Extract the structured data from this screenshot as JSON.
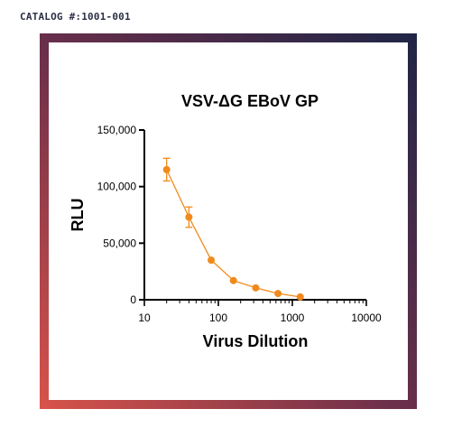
{
  "header": {
    "catalog": "CATALOG #:1001-001"
  },
  "colors": {
    "series": "#f08a1c",
    "frame_start": "#d9534a",
    "frame_end": "#1f2546"
  },
  "chart_data": {
    "type": "scatter",
    "title": "VSV-ΔG EBoV GP",
    "xlabel": "Virus Dilution",
    "ylabel": "RLU",
    "xscale": "log",
    "xlim": [
      10,
      10000
    ],
    "ylim": [
      0,
      150000
    ],
    "xticks": [
      10,
      100,
      1000,
      10000
    ],
    "xtick_labels": [
      "10",
      "100",
      "1000",
      "10000"
    ],
    "yticks": [
      0,
      50000,
      100000,
      150000
    ],
    "ytick_labels": [
      "0",
      "50,000",
      "100,000",
      "150,000"
    ],
    "grid": false,
    "series": [
      {
        "points": [
          {
            "x": 20,
            "y": 115000,
            "err": 10000
          },
          {
            "x": 40,
            "y": 73000,
            "err": 9000
          },
          {
            "x": 80,
            "y": 35000,
            "err": 0
          },
          {
            "x": 160,
            "y": 17000,
            "err": 0
          },
          {
            "x": 320,
            "y": 10500,
            "err": 0
          },
          {
            "x": 640,
            "y": 5500,
            "err": 0
          },
          {
            "x": 1280,
            "y": 2500,
            "err": 0
          }
        ]
      }
    ]
  }
}
